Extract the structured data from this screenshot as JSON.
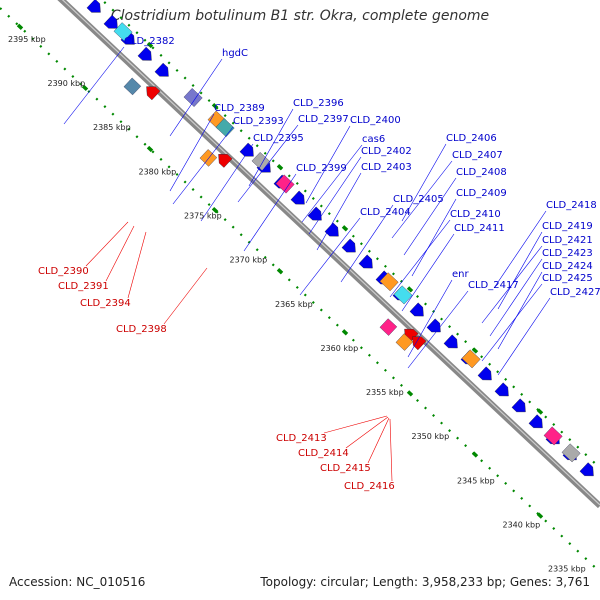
{
  "map": {
    "title": "Clostridium botulinum B1 str. Okra, complete genome",
    "accession": "Accession: NC_010516",
    "topology": "Topology: circular; Length: 3,958,233 bp; Genes: 3,761"
  },
  "colors": {
    "backbone": "#888888",
    "ruler_ticks": "#008800",
    "forward_labels": "#0000cc",
    "reverse_labels": "#cc0000",
    "cds_forward": "#0000ee",
    "cds_reverse": "#ee0000",
    "trna": "#ff2288",
    "rrna": "#44ddee",
    "misc_feature": "#ff9922",
    "pseudogene": "#aaaaaa"
  },
  "ruler_ticks": [
    "2395 kbp",
    "2390 kbp",
    "2385 kbp",
    "2380 kbp",
    "2375 kbp",
    "2370 kbp",
    "2365 kbp",
    "2360 kbp",
    "2355 kbp",
    "2350 kbp",
    "2345 kbp",
    "2340 kbp",
    "2335 kbp"
  ],
  "forward_gene_labels": [
    "CLD_2382",
    "hgdC",
    "CLD_2389",
    "CLD_2393",
    "CLD_2395",
    "CLD_2396",
    "CLD_2397",
    "CLD_2399",
    "CLD_2400",
    "cas6",
    "CLD_2402",
    "CLD_2403",
    "CLD_2404",
    "CLD_2405",
    "CLD_2406",
    "CLD_2407",
    "CLD_2408",
    "CLD_2409",
    "CLD_2410",
    "CLD_2411",
    "enr",
    "CLD_2417",
    "CLD_2418",
    "CLD_2419",
    "CLD_2421",
    "CLD_2423",
    "CLD_2424",
    "CLD_2425",
    "CLD_2427"
  ],
  "reverse_gene_labels": [
    "CLD_2390",
    "CLD_2391",
    "CLD_2394",
    "CLD_2398",
    "CLD_2413",
    "CLD_2414",
    "CLD_2415",
    "CLD_2416"
  ]
}
